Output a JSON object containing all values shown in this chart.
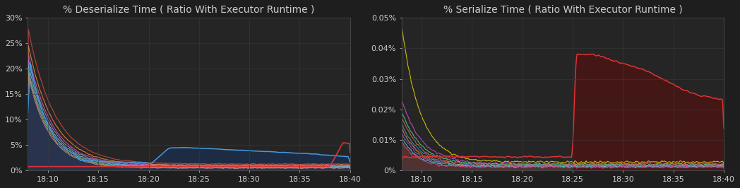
{
  "bg_color": "#1e1e1e",
  "plot_bg_color": "#252525",
  "grid_color": "#3a3a3a",
  "text_color": "#cccccc",
  "title_fontsize": 10,
  "tick_fontsize": 8,
  "chart1": {
    "title": "% Deserialize Time ( Ratio With Executor Runtime )",
    "ylim": [
      0,
      0.3
    ],
    "yticks": [
      0,
      0.05,
      0.1,
      0.15,
      0.2,
      0.25,
      0.3
    ],
    "yticklabels": [
      "0%",
      "5%",
      "10%",
      "15%",
      "20%",
      "25%",
      "30%"
    ],
    "fill_color": "#5a4050",
    "blue_fill_color": "#1a3050",
    "line_colors": [
      "#cc4444",
      "#dd8833",
      "#cc55aa",
      "#9988cc",
      "#88aacc",
      "#55bbaa",
      "#aaaa55",
      "#bb8888"
    ],
    "blue_line_color": "#4499dd",
    "red_spike_color": "#dd3333"
  },
  "chart2": {
    "title": "% Serialize Time ( Ratio With Executor Runtime )",
    "ylim": [
      0,
      0.0005
    ],
    "yticks": [
      0,
      0.0001,
      0.0002,
      0.0003,
      0.0004,
      0.0005
    ],
    "yticklabels": [
      "0%",
      "0.01%",
      "0.02%",
      "0.03%",
      "0.04%",
      "0.05%"
    ],
    "fill_color": "#5a3535",
    "red_fill_color": "#4a1515",
    "line_colors": [
      "#ddcc00",
      "#cc44cc",
      "#44cc88",
      "#cc6644",
      "#4488cc",
      "#cc8844",
      "#8855cc",
      "#44cccc",
      "#cc4488"
    ],
    "red_line_color": "#dd3333"
  },
  "xtick_positions": [
    0,
    5,
    10,
    15,
    20,
    25,
    30
  ],
  "xtick_labels": [
    "18:10",
    "18:15",
    "18:20",
    "18:25",
    "18:30",
    "18:35",
    "18:40"
  ],
  "n_points": 500
}
